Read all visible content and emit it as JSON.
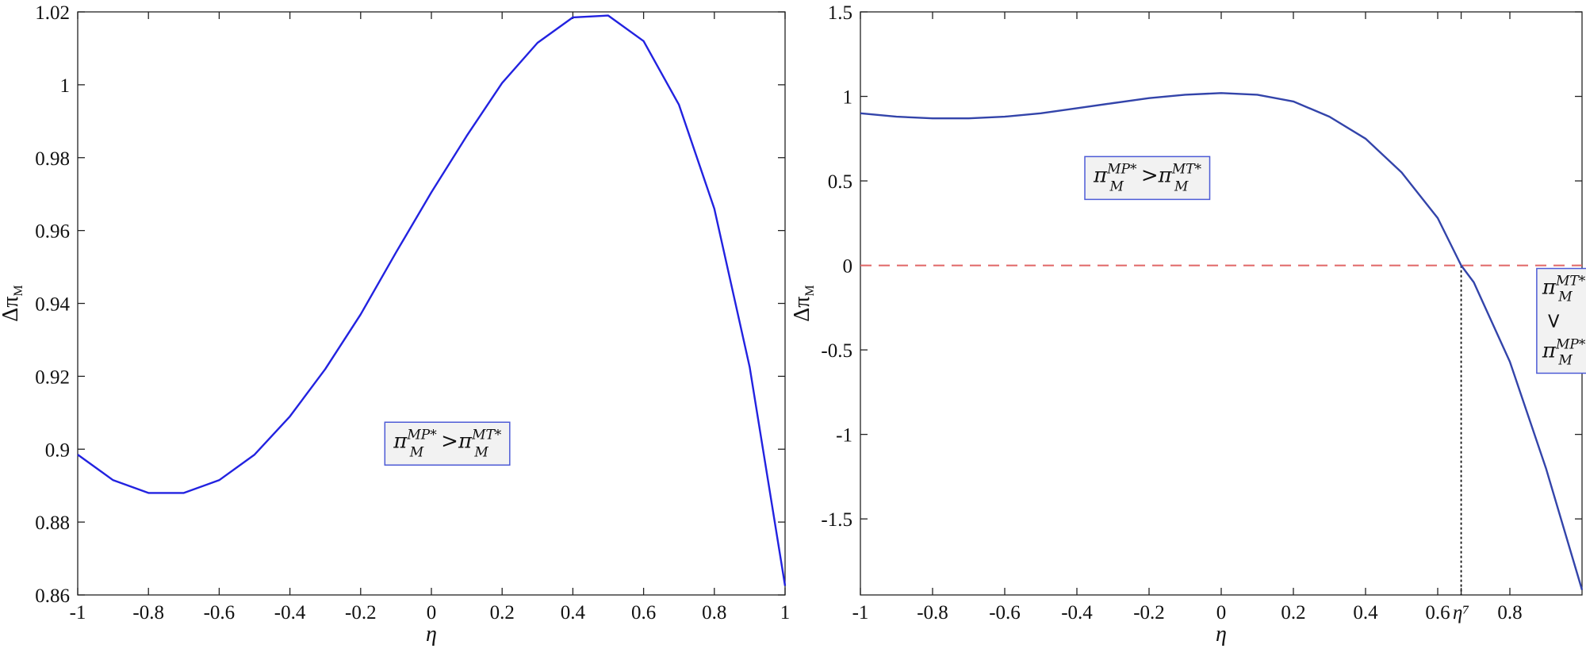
{
  "chart_data": [
    {
      "type": "line",
      "xlabel": "η",
      "ylabel": "Δπ",
      "ylabel_sub": "M",
      "xlim": [
        -1,
        1
      ],
      "ylim": [
        0.86,
        1.02
      ],
      "xticks": [
        -1,
        -0.8,
        -0.6,
        -0.4,
        -0.2,
        0,
        0.2,
        0.4,
        0.6,
        0.8,
        1
      ],
      "xtick_labels": [
        "-1",
        "-0.8",
        "-0.6",
        "-0.4",
        "-0.2",
        "0",
        "0.2",
        "0.4",
        "0.6",
        "0.8",
        "1"
      ],
      "yticks": [
        0.86,
        0.88,
        0.9,
        0.92,
        0.94,
        0.96,
        0.98,
        1,
        1.02
      ],
      "ytick_labels": [
        "0.86",
        "0.88",
        "0.9",
        "0.92",
        "0.94",
        "0.96",
        "0.98",
        "1",
        "1.02"
      ],
      "series": [
        {
          "color": "#2222e0",
          "x": [
            -1,
            -0.9,
            -0.8,
            -0.7,
            -0.6,
            -0.5,
            -0.4,
            -0.3,
            -0.2,
            -0.1,
            0,
            0.1,
            0.2,
            0.3,
            0.4,
            0.5,
            0.6,
            0.7,
            0.8,
            0.9,
            1
          ],
          "y": [
            0.8985,
            0.8915,
            0.888,
            0.888,
            0.8915,
            0.8985,
            0.909,
            0.922,
            0.937,
            0.954,
            0.9705,
            0.986,
            1.0005,
            1.0115,
            1.0185,
            1.019,
            1.012,
            0.9945,
            0.966,
            0.9225,
            0.8625
          ]
        }
      ],
      "annotation": {
        "left": {
          "base": "π",
          "sub": "M",
          "sup": "MP*"
        },
        "relation": ">",
        "right": {
          "base": "π",
          "sub": "M",
          "sup": "MT*"
        },
        "x": 0.05,
        "y": 0.9
      }
    },
    {
      "type": "line",
      "xlabel": "η",
      "ylabel": "Δπ",
      "ylabel_sub": "M",
      "xlim": [
        -1,
        1
      ],
      "ylim": [
        -1.95,
        1.5
      ],
      "xticks": [
        -1,
        -0.8,
        -0.6,
        -0.4,
        -0.2,
        0,
        0.2,
        0.4,
        0.6,
        0.665,
        0.8
      ],
      "xtick_labels": [
        "-1",
        "-0.8",
        "-0.6",
        "-0.4",
        "-0.2",
        "0",
        "0.2",
        "0.4",
        "0.6",
        "η⁷",
        "0.8"
      ],
      "yticks": [
        -1.5,
        -1,
        -0.5,
        0,
        0.5,
        1,
        1.5
      ],
      "ytick_labels": [
        "-1.5",
        "-1",
        "-0.5",
        "0",
        "0.5",
        "1",
        "1.5"
      ],
      "series": [
        {
          "color": "#3344aa",
          "x": [
            -1,
            -0.9,
            -0.8,
            -0.7,
            -0.6,
            -0.5,
            -0.4,
            -0.3,
            -0.2,
            -0.1,
            0,
            0.1,
            0.2,
            0.3,
            0.4,
            0.5,
            0.6,
            0.665,
            0.7,
            0.8,
            0.9,
            1
          ],
          "y": [
            0.9,
            0.88,
            0.87,
            0.87,
            0.88,
            0.9,
            0.93,
            0.96,
            0.99,
            1.01,
            1.02,
            1.01,
            0.97,
            0.88,
            0.75,
            0.55,
            0.28,
            0.0,
            -0.1,
            -0.57,
            -1.2,
            -1.92
          ]
        }
      ],
      "reference_line": {
        "y": 0,
        "color": "#e06666",
        "style": "dashed"
      },
      "reference_vline": {
        "x": 0.665,
        "color": "#111111",
        "style": "dotted"
      },
      "annotations": [
        {
          "left": {
            "base": "π",
            "sub": "M",
            "sup": "MP*"
          },
          "relation": ">",
          "right": {
            "base": "π",
            "sub": "M",
            "sup": "MT*"
          },
          "x": -0.2,
          "y": 0.55
        },
        {
          "stacked": true,
          "left": {
            "base": "π",
            "sub": "M",
            "sup": "MT*"
          },
          "relation": ">",
          "right": {
            "base": "π",
            "sub": "M",
            "sup": "MP*"
          },
          "x": 0.925,
          "y": -0.3
        }
      ]
    }
  ]
}
